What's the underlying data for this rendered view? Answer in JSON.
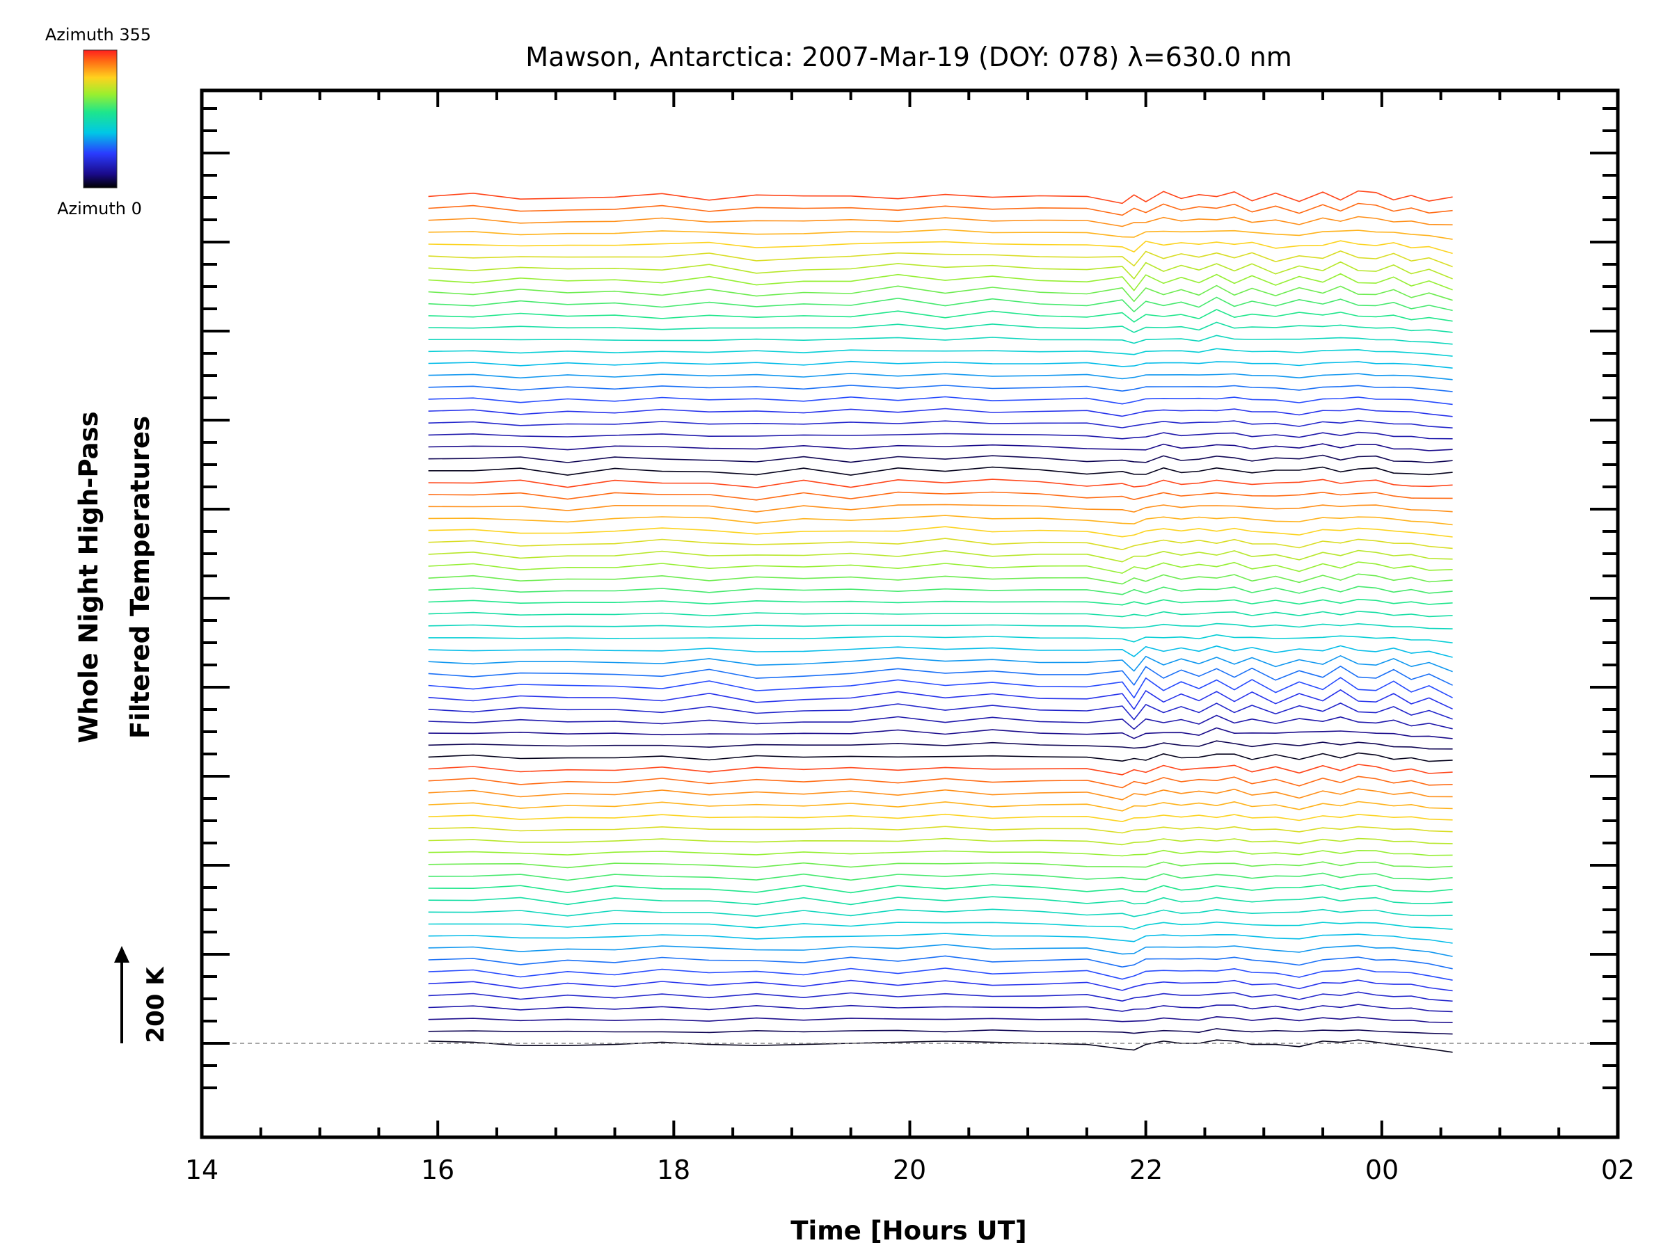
{
  "chart_data": {
    "type": "line",
    "title": "Mawson, Antarctica: 2007-Mar-19 (DOY: 078) λ=630.0 nm",
    "xlabel": "Time [Hours UT]",
    "ylabel_line1": "Whole Night High-Pass",
    "ylabel_line2": "Filtered Temperatures",
    "x_tick_labels": [
      "14",
      "16",
      "18",
      "20",
      "22",
      "00",
      "02"
    ],
    "xlim_hours": [
      14,
      26
    ],
    "colorbar": {
      "top_label": "Azimuth 355",
      "bottom_label": "Azimuth 0"
    },
    "scale_bar_label": "200 K",
    "offset_per_trace_k": 10.5,
    "n_traces": 72,
    "azimuth_range": [
      0,
      355
    ],
    "time_hours": [
      15.92,
      16.3,
      16.7,
      17.1,
      17.5,
      17.9,
      18.3,
      18.7,
      19.1,
      19.5,
      19.9,
      20.3,
      20.7,
      21.1,
      21.5,
      21.8,
      21.9,
      22.0,
      22.15,
      22.3,
      22.45,
      22.6,
      22.75,
      22.9,
      23.1,
      23.3,
      23.5,
      23.65,
      23.8,
      23.95,
      24.1,
      24.25,
      24.4,
      24.6
    ],
    "baseline_trace_k": [
      2,
      1,
      -2,
      -2,
      -1,
      1,
      -1,
      -2,
      -1,
      0,
      1,
      2,
      1,
      0,
      -1,
      -5,
      -6,
      -1,
      2,
      0,
      0,
      3,
      2,
      -1,
      -1,
      -3,
      2,
      1,
      3,
      1,
      -1,
      -3,
      -5,
      -8
    ],
    "modes": {
      "m1": [
        0,
        3,
        -4,
        1,
        -2,
        3,
        -3,
        4,
        -1,
        3,
        -4,
        2,
        -3,
        0,
        2,
        -6,
        4,
        -3,
        3,
        -1,
        2,
        -2,
        4,
        -3,
        3,
        -5,
        2,
        -3,
        4,
        2,
        -2,
        3,
        -2,
        1
      ],
      "m2": [
        0,
        1,
        -2,
        -2,
        -1,
        1,
        -1,
        -2,
        -1,
        0,
        1,
        2,
        1,
        0,
        -1,
        -5,
        -6,
        -1,
        2,
        0,
        0,
        3,
        2,
        -1,
        -1,
        -3,
        2,
        1,
        3,
        1,
        -1,
        -3,
        -5,
        -8
      ],
      "m3": [
        0,
        -2,
        1,
        3,
        -1,
        -3,
        2,
        1,
        -2,
        2,
        3,
        -2,
        2,
        -1,
        1,
        5,
        -4,
        5,
        -4,
        3,
        -3,
        4,
        -3,
        4,
        -2,
        4,
        -3,
        5,
        -3,
        -4,
        3,
        -2,
        2,
        -4
      ],
      "m4": [
        0,
        1,
        3,
        -1,
        2,
        -1,
        -3,
        2,
        3,
        -2,
        1,
        -3,
        3,
        1,
        -1,
        2,
        4,
        -5,
        3,
        -2,
        -1,
        2,
        1,
        -3,
        5,
        2,
        4,
        -3,
        2,
        3,
        -3,
        1,
        -1,
        6
      ]
    }
  }
}
